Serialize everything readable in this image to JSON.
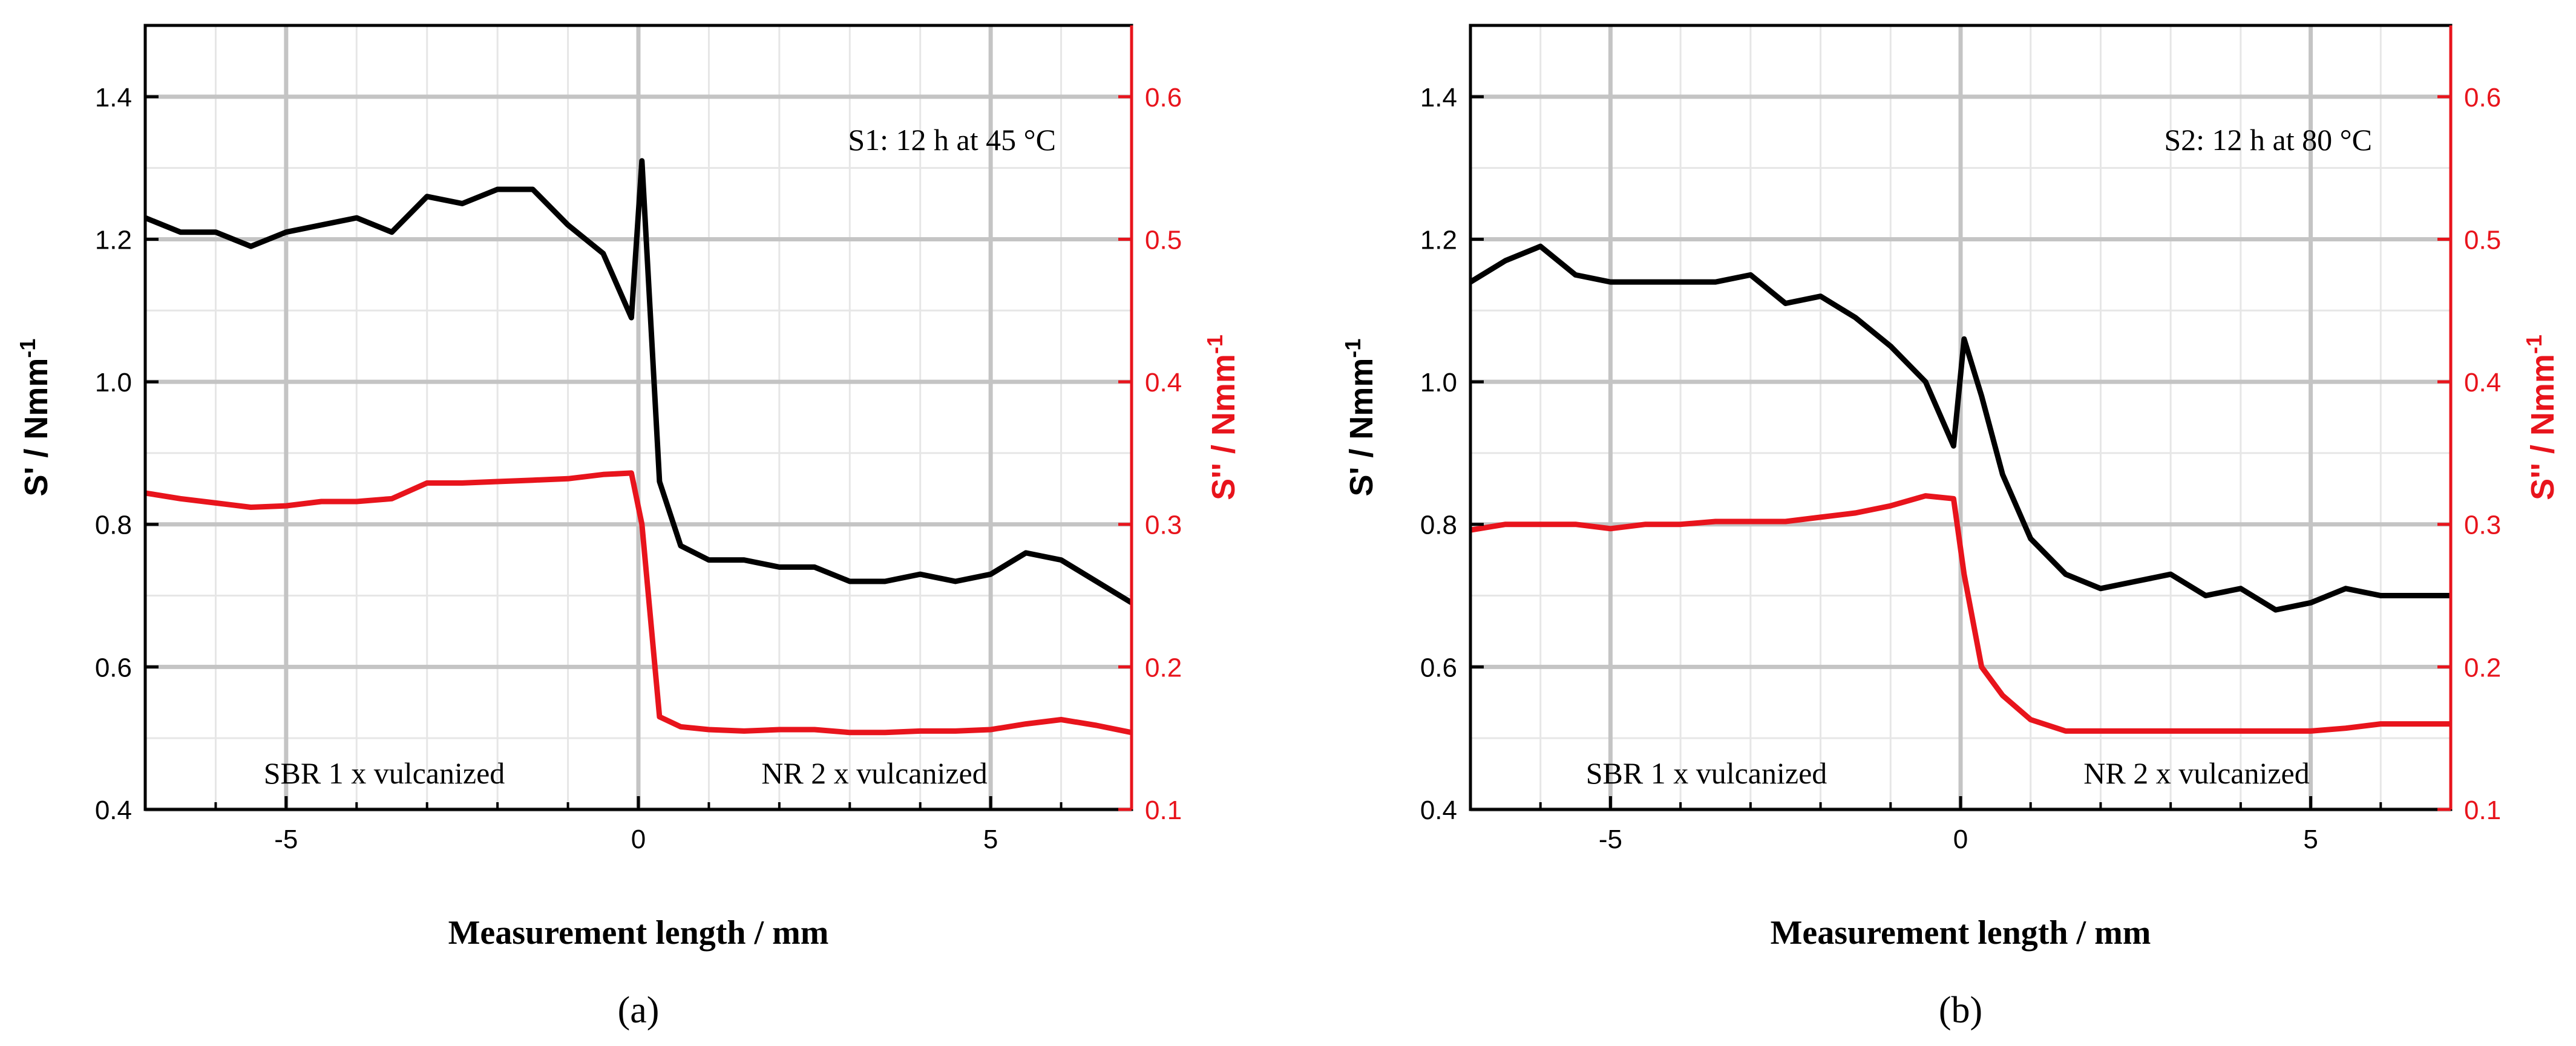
{
  "chart_data": [
    {
      "type": "line",
      "panel_label": "(a)",
      "annotation": "S1: 12 h at 45 °C",
      "region_labels": [
        "SBR 1 x vulcanized",
        "NR 2 x vulcanized"
      ],
      "xlabel": "Measurement length / mm",
      "ylabel_left": "S' / Nmm",
      "ylabel_right": "S'' / Nmm",
      "ylabel_unit_exp": "-1",
      "xlim": [
        -7,
        7
      ],
      "ylim_left": [
        0.4,
        1.5
      ],
      "ylim_right": [
        0.1,
        0.65
      ],
      "xticks": [
        "-5",
        "0",
        "5"
      ],
      "yticks_left": [
        "0.4",
        "0.6",
        "0.8",
        "1.0",
        "1.2",
        "1.4"
      ],
      "yticks_right": [
        "0.1",
        "0.2",
        "0.3",
        "0.4",
        "0.5",
        "0.6"
      ],
      "x": [
        -7.0,
        -6.5,
        -6.0,
        -5.5,
        -5.0,
        -4.5,
        -4.0,
        -3.5,
        -3.0,
        -2.5,
        -2.0,
        -1.5,
        -1.0,
        -0.5,
        -0.1,
        0.05,
        0.3,
        0.6,
        1.0,
        1.5,
        2.0,
        2.5,
        3.0,
        3.5,
        4.0,
        4.5,
        5.0,
        5.5,
        6.0,
        6.5,
        7.0
      ],
      "series": [
        {
          "name": "S'",
          "axis": "left",
          "color": "#000000",
          "values": [
            1.23,
            1.21,
            1.21,
            1.19,
            1.21,
            1.22,
            1.23,
            1.21,
            1.26,
            1.25,
            1.27,
            1.27,
            1.22,
            1.18,
            1.09,
            1.31,
            0.86,
            0.77,
            0.75,
            0.75,
            0.74,
            0.74,
            0.72,
            0.72,
            0.73,
            0.72,
            0.73,
            0.76,
            0.75,
            0.72,
            0.69
          ]
        },
        {
          "name": "S''",
          "axis": "right",
          "color": "#e8141c",
          "values": [
            0.322,
            0.318,
            0.315,
            0.312,
            0.313,
            0.316,
            0.316,
            0.318,
            0.329,
            0.329,
            0.33,
            0.331,
            0.332,
            0.335,
            0.336,
            0.3,
            0.165,
            0.158,
            0.156,
            0.155,
            0.156,
            0.156,
            0.154,
            0.154,
            0.155,
            0.155,
            0.156,
            0.16,
            0.163,
            0.159,
            0.154
          ]
        }
      ]
    },
    {
      "type": "line",
      "panel_label": "(b)",
      "annotation": "S2: 12 h at 80 °C",
      "region_labels": [
        "SBR 1 x vulcanized",
        "NR 2 x vulcanized"
      ],
      "xlabel": "Measurement length / mm",
      "ylabel_left": "S' / Nmm",
      "ylabel_right": "S'' / Nmm",
      "ylabel_unit_exp": "-1",
      "xlim": [
        -7,
        7
      ],
      "ylim_left": [
        0.4,
        1.5
      ],
      "ylim_right": [
        0.1,
        0.65
      ],
      "xticks": [
        "-5",
        "0",
        "5"
      ],
      "yticks_left": [
        "0.4",
        "0.6",
        "0.8",
        "1.0",
        "1.2",
        "1.4"
      ],
      "yticks_right": [
        "0.1",
        "0.2",
        "0.3",
        "0.4",
        "0.5",
        "0.6"
      ],
      "x": [
        -7.0,
        -6.5,
        -6.0,
        -5.5,
        -5.0,
        -4.5,
        -4.0,
        -3.5,
        -3.0,
        -2.5,
        -2.0,
        -1.5,
        -1.0,
        -0.5,
        -0.1,
        0.05,
        0.3,
        0.6,
        1.0,
        1.5,
        2.0,
        2.5,
        3.0,
        3.5,
        4.0,
        4.5,
        5.0,
        5.5,
        6.0,
        6.5,
        7.0
      ],
      "series": [
        {
          "name": "S'",
          "axis": "left",
          "color": "#000000",
          "values": [
            1.14,
            1.17,
            1.19,
            1.15,
            1.14,
            1.14,
            1.14,
            1.14,
            1.15,
            1.11,
            1.12,
            1.09,
            1.05,
            1.0,
            0.91,
            1.06,
            0.98,
            0.87,
            0.78,
            0.73,
            0.71,
            0.72,
            0.73,
            0.7,
            0.71,
            0.68,
            0.69,
            0.71,
            0.7,
            0.7,
            0.7
          ]
        },
        {
          "name": "S''",
          "axis": "right",
          "color": "#e8141c",
          "values": [
            0.296,
            0.3,
            0.3,
            0.3,
            0.297,
            0.3,
            0.3,
            0.302,
            0.302,
            0.302,
            0.305,
            0.308,
            0.313,
            0.32,
            0.318,
            0.265,
            0.2,
            0.18,
            0.163,
            0.155,
            0.155,
            0.155,
            0.155,
            0.155,
            0.155,
            0.155,
            0.155,
            0.157,
            0.16,
            0.16,
            0.16
          ]
        }
      ]
    }
  ]
}
